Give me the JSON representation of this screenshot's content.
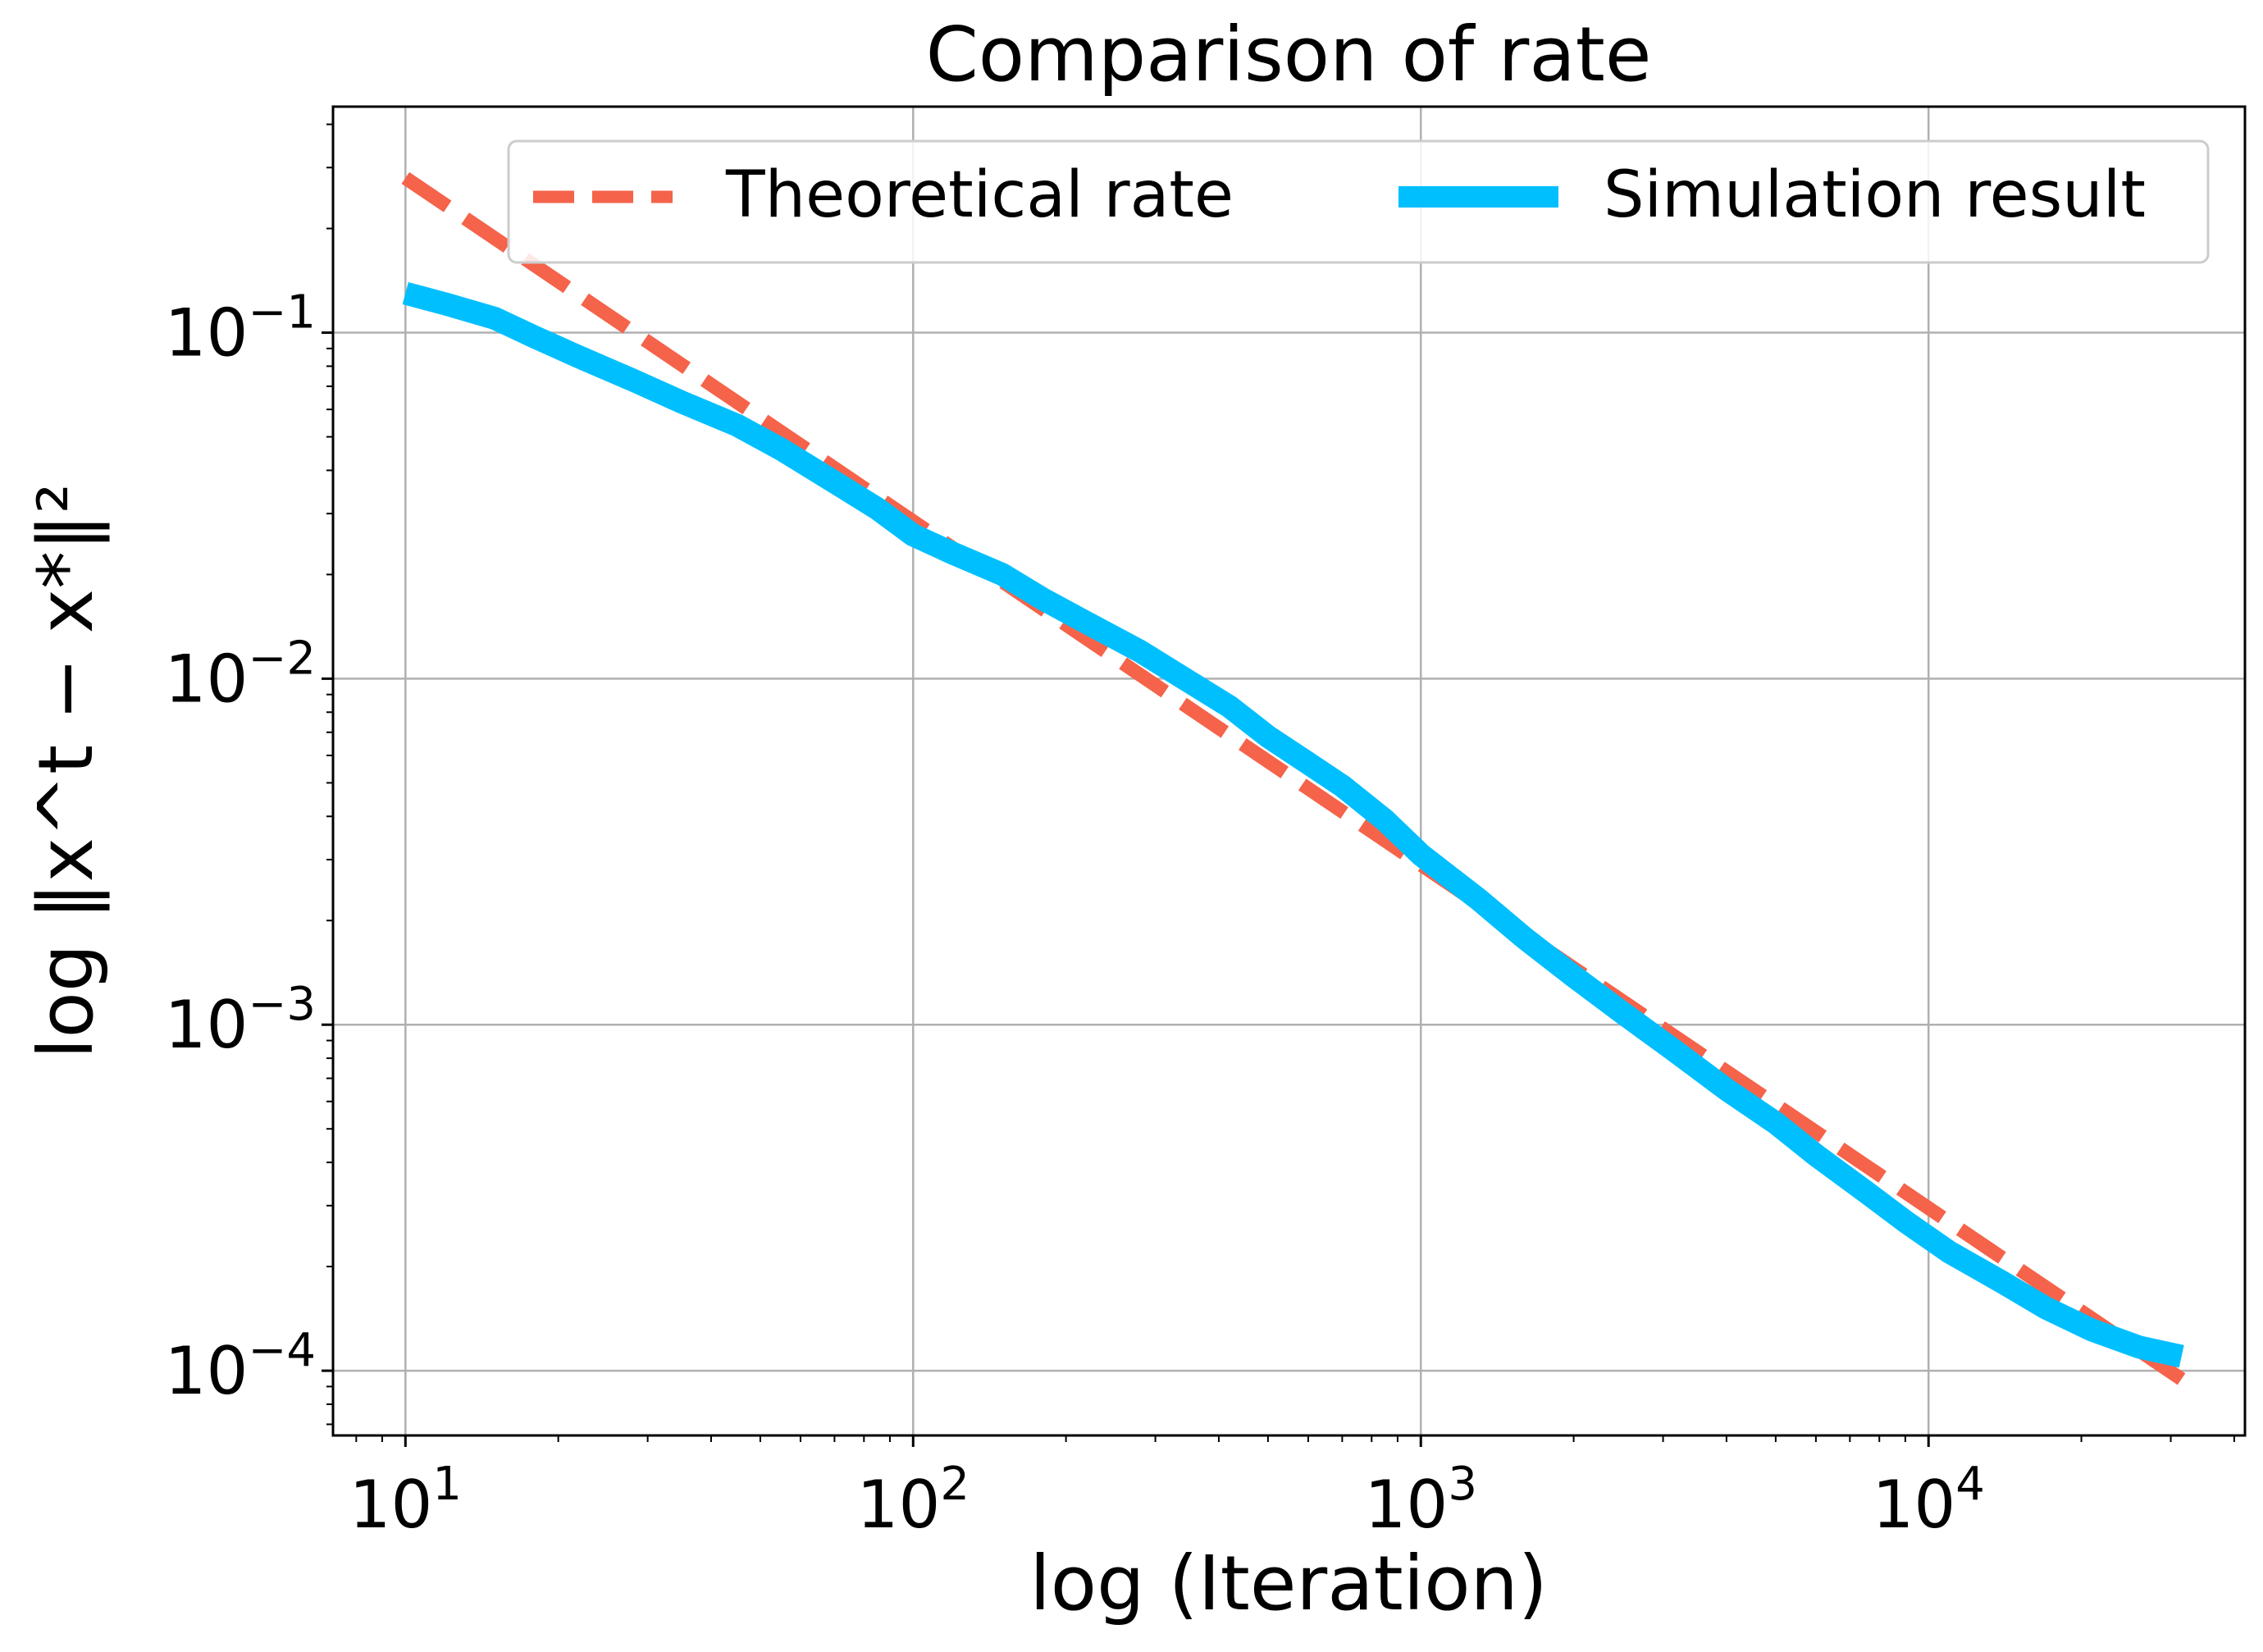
{
  "chart_data": {
    "type": "line",
    "title": "Comparison of rate",
    "xlabel": "log (Iteration)",
    "ylabel": "log ‖x^t − x*‖²",
    "xscale": "log",
    "yscale": "log",
    "xlim": [
      7.2,
      42000
    ],
    "ylim": [
      6.5e-05,
      0.45
    ],
    "grid": true,
    "legend_position": "top-right",
    "x_ticks": [
      {
        "value": 10,
        "base": "10",
        "exp": "1"
      },
      {
        "value": 100,
        "base": "10",
        "exp": "2"
      },
      {
        "value": 1000,
        "base": "10",
        "exp": "3"
      },
      {
        "value": 10000,
        "base": "10",
        "exp": "4"
      }
    ],
    "y_ticks": [
      {
        "value": 0.1,
        "base": "10",
        "exp": "−1"
      },
      {
        "value": 0.01,
        "base": "10",
        "exp": "−2"
      },
      {
        "value": 0.001,
        "base": "10",
        "exp": "−3"
      },
      {
        "value": 0.0001,
        "base": "10",
        "exp": "−4"
      }
    ],
    "series": [
      {
        "name": "Theoretical rate",
        "color": "#F5634A",
        "style": "dashed",
        "x": [
          10,
          31500
        ],
        "y": [
          0.28,
          9.45e-05
        ]
      },
      {
        "name": "Simulation result",
        "color": "#00BFFF",
        "style": "solid",
        "x": [
          10,
          12,
          15,
          18,
          22,
          28,
          35,
          45,
          55,
          70,
          85,
          100,
          120,
          150,
          180,
          220,
          280,
          350,
          420,
          500,
          600,
          700,
          850,
          1000,
          1300,
          1600,
          2000,
          2500,
          3200,
          4000,
          5000,
          6000,
          7500,
          9000,
          11000,
          14000,
          17000,
          21000,
          26000,
          31500
        ],
        "y": [
          0.13,
          0.121,
          0.11,
          0.097,
          0.085,
          0.073,
          0.063,
          0.054,
          0.046,
          0.037,
          0.031,
          0.026,
          0.023,
          0.02,
          0.017,
          0.0145,
          0.012,
          0.0098,
          0.0083,
          0.0068,
          0.0057,
          0.0049,
          0.0039,
          0.0031,
          0.0023,
          0.00178,
          0.00138,
          0.00108,
          0.00083,
          0.00065,
          0.00052,
          0.00042,
          0.00033,
          0.00027,
          0.00022,
          0.00018,
          0.000152,
          0.000131,
          0.000117,
          0.00011
        ]
      }
    ]
  }
}
